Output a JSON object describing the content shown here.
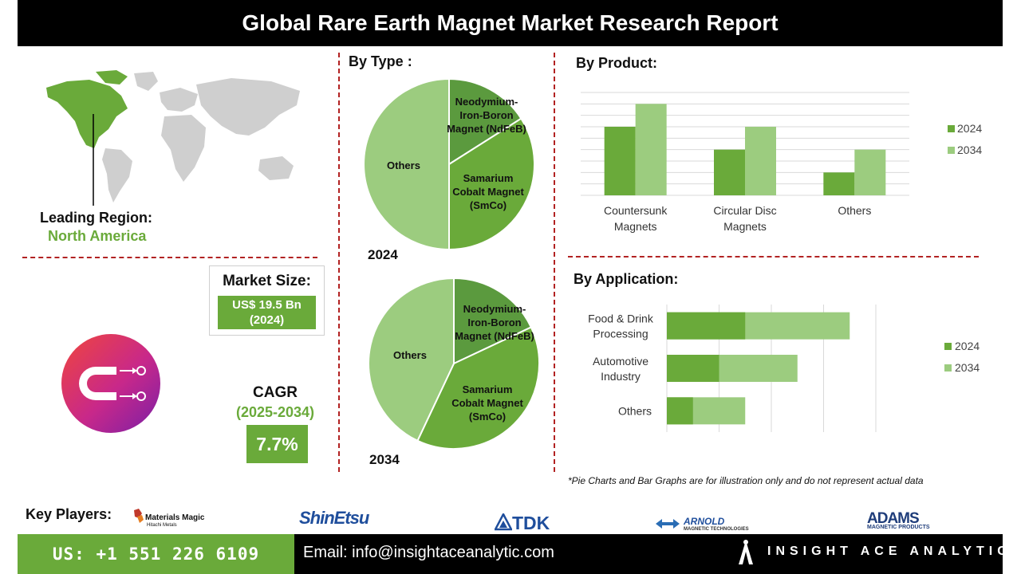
{
  "header": {
    "title": "Global Rare Earth Magnet Market Research Report"
  },
  "region": {
    "label": "Leading Region:",
    "value": "North America"
  },
  "market_size": {
    "label": "Market Size:",
    "value_line1": "US$ 19.5 Bn",
    "value_line2": "(2024)"
  },
  "cagr": {
    "label": "CAGR",
    "years": "(2025-2034)",
    "value": "7.7%"
  },
  "sections": {
    "by_type": "By Type  :",
    "by_product": "By Product:",
    "by_application": "By Application:"
  },
  "footnote": "*Pie Charts and Bar Graphs are for illustration only and do not represent actual data",
  "key_players": {
    "label": "Key Players:",
    "logos": [
      "Materials Magic",
      "Hitachi Metals",
      "ShinEtsu",
      "TDK",
      "ARNOLD",
      "MAGNETIC TECHNOLOGIES",
      "ADAMS",
      "MAGNETIC PRODUCTS"
    ]
  },
  "footer": {
    "phone": "US: +1 551 226 6109",
    "email": "Email: info@insightaceanalytic.com",
    "brand": "INSIGHT ACE ANALYTIC"
  },
  "colors": {
    "dark_green": "#5b9a3e",
    "mid_green": "#6aaa3a",
    "light_green": "#9ccc7f",
    "accent_red": "#b22222"
  },
  "icons": [
    "world-map-icon",
    "magnet-icon"
  ],
  "chart_data": [
    {
      "type": "pie",
      "year": "2024",
      "slices": [
        {
          "label": "Neodymium-Iron-Boron Magnet (NdFeB)",
          "value": 16
        },
        {
          "label": "Samarium Cobalt Magnet (SmCo)",
          "value": 34
        },
        {
          "label": "Others",
          "value": 50
        }
      ]
    },
    {
      "type": "pie",
      "year": "2034",
      "slices": [
        {
          "label": "Neodymium-Iron-Boron Magnet (NdFeB)",
          "value": 18
        },
        {
          "label": "Samarium Cobalt Magnet (SmCo)",
          "value": 39
        },
        {
          "label": "Others",
          "value": 43
        }
      ]
    },
    {
      "type": "bar",
      "categories": [
        "Countersunk Magnets",
        "Circular Disc Magnets",
        "Others"
      ],
      "series": [
        {
          "name": "2024",
          "values": [
            3,
            2,
            1
          ]
        },
        {
          "name": "2034",
          "values": [
            4,
            3,
            2
          ]
        }
      ],
      "ylim": [
        0,
        4.5
      ],
      "grid": true,
      "legend": "right"
    },
    {
      "type": "bar",
      "orientation": "horizontal",
      "categories": [
        "Food & Drink Processing",
        "Automotive Industry",
        "Others"
      ],
      "series": [
        {
          "name": "2024",
          "values": [
            1.5,
            1,
            0.5
          ]
        },
        {
          "name": "2034",
          "values": [
            3.5,
            2.5,
            1.5
          ]
        }
      ],
      "xlim": [
        0,
        4
      ],
      "grid": true,
      "legend": "right"
    }
  ]
}
